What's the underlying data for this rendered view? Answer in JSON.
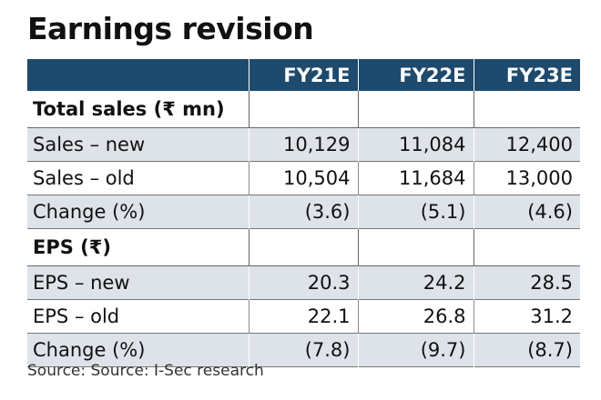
{
  "title": "Earnings revision",
  "table": {
    "columns": [
      "FY21E",
      "FY22E",
      "FY23E"
    ],
    "sections": [
      {
        "heading": "Total sales (₹ mn)",
        "rows": [
          [
            "Sales – new",
            "10,129",
            "11,084",
            "12,400"
          ],
          [
            "Sales – old",
            "10,504",
            "11,684",
            "13,000"
          ],
          [
            "Change (%)",
            "(3.6)",
            "(5.1)",
            "(4.6)"
          ]
        ]
      },
      {
        "heading": "EPS (₹)",
        "rows": [
          [
            "EPS – new",
            "20.3",
            "24.2",
            "28.5"
          ],
          [
            "EPS – old",
            "22.1",
            "26.8",
            "31.2"
          ],
          [
            "Change (%)",
            "(7.8)",
            "(9.7)",
            "(8.7)"
          ]
        ]
      }
    ]
  },
  "source": "Source: Source: I-Sec research"
}
